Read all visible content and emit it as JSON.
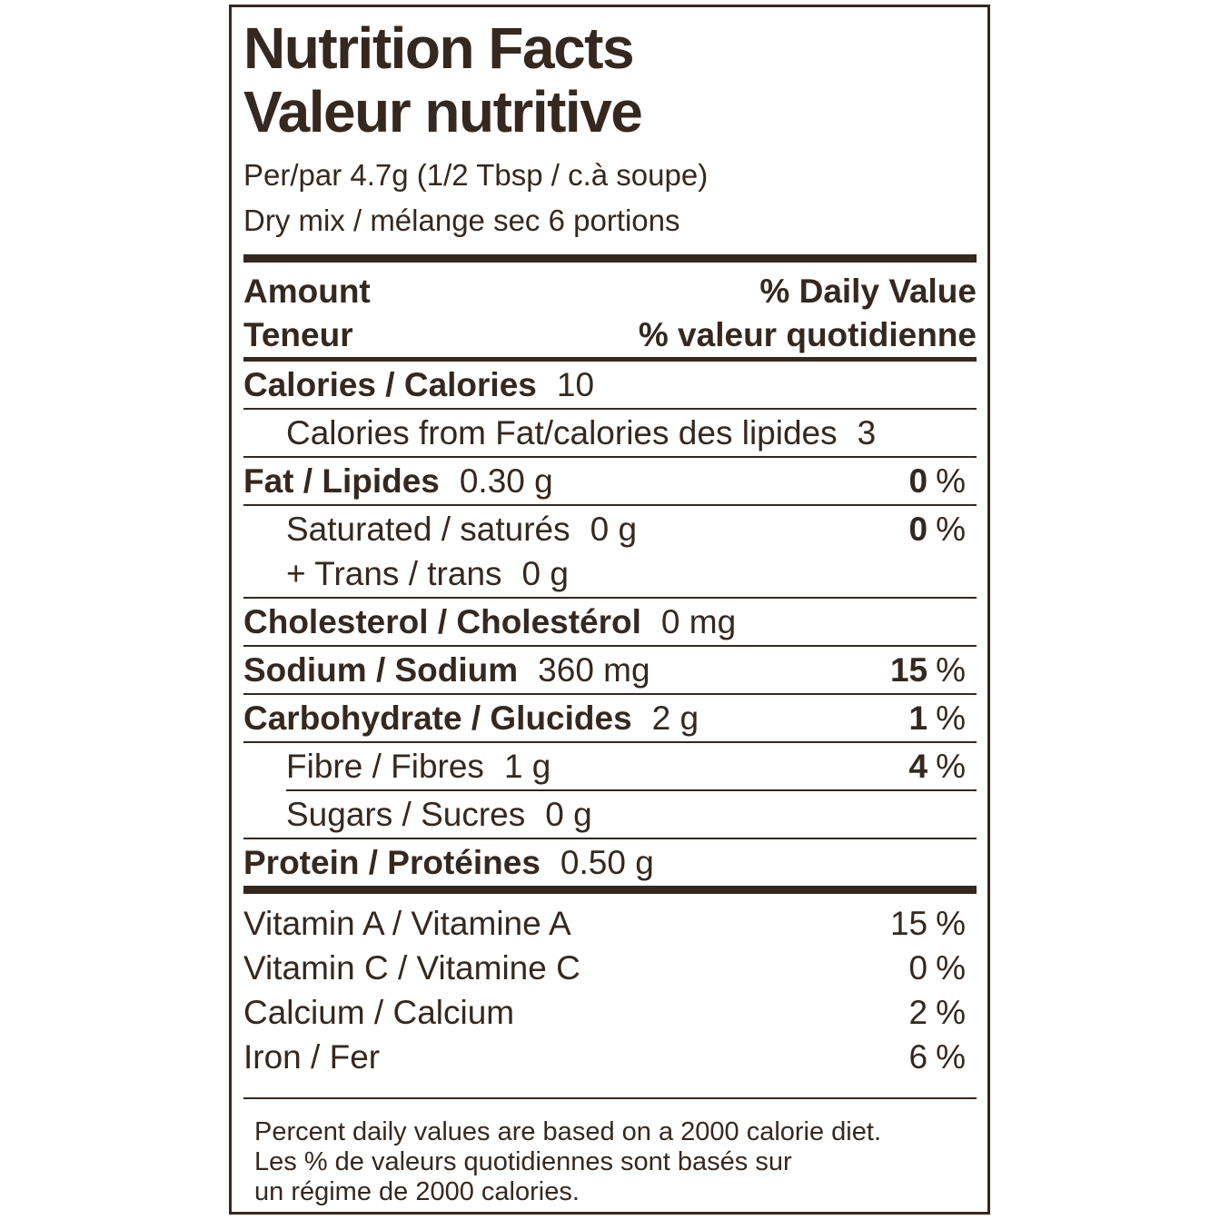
{
  "colors": {
    "ink": "#35281f",
    "background": "#ffffff"
  },
  "label": {
    "title_en": "Nutrition Facts",
    "title_fr": "Valeur nutritive",
    "serving_line1": "Per/par 4.7g (1/2 Tbsp / c.à soupe)",
    "serving_line2": "Dry mix / mélange sec 6 portions",
    "percent_sign": "%",
    "header": {
      "amount_en": "Amount",
      "daily_value_en": "% Daily Value",
      "amount_fr": "Teneur",
      "daily_value_fr": "% valeur quotidienne"
    },
    "rows": [
      {
        "name": "Calories / Calories",
        "value": "10"
      },
      {
        "name": "Calories from Fat/calories des lipides",
        "value": "3"
      },
      {
        "name": "Fat / Lipides",
        "value": "0.30 g",
        "dv": "0"
      },
      {
        "name": "Saturated / saturés",
        "value": "0 g",
        "dv": "0"
      },
      {
        "name": "+ Trans / trans",
        "value": "0 g"
      },
      {
        "name": "Cholesterol / Cholestérol",
        "value": "0 mg"
      },
      {
        "name": "Sodium / Sodium",
        "value": "360 mg",
        "dv": "15"
      },
      {
        "name": "Carbohydrate / Glucides",
        "value": "2 g",
        "dv": "1"
      },
      {
        "name": "Fibre / Fibres",
        "value": "1 g",
        "dv": "4"
      },
      {
        "name": "Sugars / Sucres",
        "value": "0 g"
      },
      {
        "name": "Protein / Protéines",
        "value": "0.50 g"
      }
    ],
    "micronutrients": [
      {
        "name": "Vitamin A / Vitamine A",
        "dv": "15"
      },
      {
        "name": "Vitamin C / Vitamine C",
        "dv": "0"
      },
      {
        "name": "Calcium / Calcium",
        "dv": "2"
      },
      {
        "name": "Iron / Fer",
        "dv": "6"
      }
    ],
    "footnote_line1": "Percent daily values are based on a 2000 calorie diet.",
    "footnote_line2": "Les % de valeurs quotidiennes sont basés sur",
    "footnote_line3": "un régime de 2000 calories."
  }
}
